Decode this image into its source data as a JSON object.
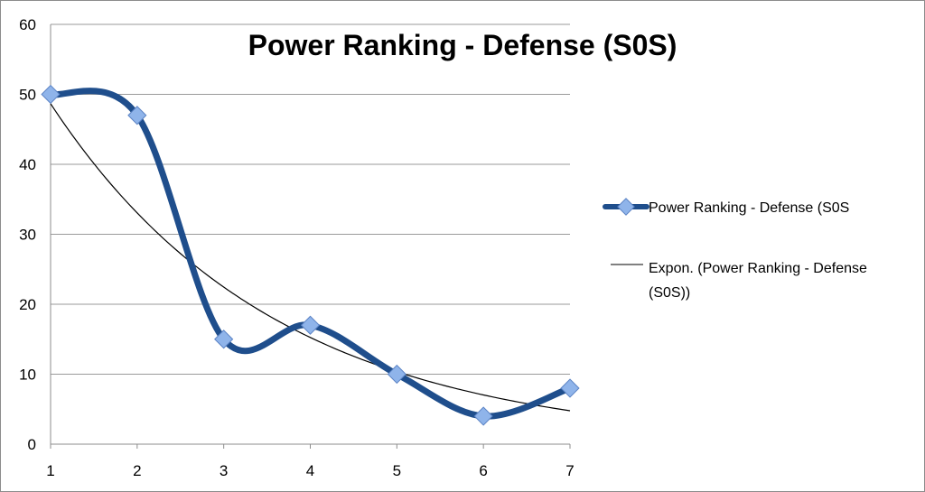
{
  "chart_data": {
    "type": "line",
    "title": "Power Ranking - Defense (S0S)",
    "xlabel": "",
    "ylabel": "",
    "x": [
      1,
      2,
      3,
      4,
      5,
      6,
      7
    ],
    "xlim": [
      1,
      7
    ],
    "ylim": [
      0,
      60
    ],
    "y_ticks": [
      0,
      10,
      20,
      30,
      40,
      50,
      60
    ],
    "grid": true,
    "legend_position": "right",
    "series": [
      {
        "name": "Power Ranking - Defense (S0S",
        "values": [
          50,
          47,
          15,
          17,
          10,
          4,
          8
        ],
        "color": "#1f4e8c",
        "marker_color": "#8fb4ea",
        "smoothed": true
      }
    ],
    "trendline": {
      "name_line1": "Expon. (Power Ranking - Defense",
      "name_line2": "(S0S))",
      "type": "exponential",
      "color": "#000000"
    }
  }
}
